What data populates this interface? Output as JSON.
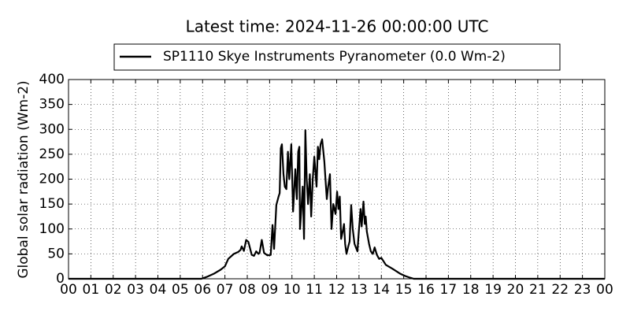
{
  "chart_data": {
    "type": "line",
    "title": "Latest time: 2024-11-26 00:00:00 UTC",
    "y_label": "Global solar radiation (Wm-2)",
    "series": [
      {
        "name": "SP1110 Skye Instruments Pyranometer (0.0 Wm-2)",
        "color": "#000000",
        "x": [
          0,
          5.5,
          5.95,
          6.2,
          6.5,
          6.8,
          7.0,
          7.15,
          7.4,
          7.6,
          7.7,
          7.75,
          7.85,
          7.95,
          8.05,
          8.2,
          8.3,
          8.4,
          8.5,
          8.55,
          8.65,
          8.75,
          8.9,
          9.05,
          9.13,
          9.2,
          9.3,
          9.4,
          9.45,
          9.5,
          9.55,
          9.62,
          9.68,
          9.75,
          9.82,
          9.88,
          9.97,
          10.05,
          10.15,
          10.22,
          10.28,
          10.33,
          10.36,
          10.42,
          10.48,
          10.54,
          10.6,
          10.66,
          10.72,
          10.8,
          10.86,
          10.93,
          11.0,
          11.1,
          11.16,
          11.22,
          11.28,
          11.35,
          11.45,
          11.5,
          11.56,
          11.62,
          11.7,
          11.77,
          11.85,
          11.95,
          12.02,
          12.08,
          12.14,
          12.2,
          12.27,
          12.33,
          12.38,
          12.44,
          12.52,
          12.58,
          12.65,
          12.72,
          12.8,
          12.93,
          13.0,
          13.07,
          13.12,
          13.2,
          13.26,
          13.3,
          13.35,
          13.45,
          13.53,
          13.62,
          13.7,
          13.8,
          13.9,
          14.0,
          14.2,
          14.5,
          14.85,
          15.1,
          15.3,
          15.45,
          16,
          24
        ],
        "values": [
          0,
          0,
          0,
          4,
          10,
          18,
          25,
          40,
          50,
          54,
          58,
          65,
          56,
          78,
          74,
          48,
          46,
          55,
          50,
          52,
          78,
          52,
          47,
          48,
          108,
          60,
          148,
          165,
          172,
          262,
          270,
          210,
          185,
          180,
          255,
          200,
          270,
          135,
          220,
          160,
          255,
          265,
          100,
          140,
          185,
          80,
          298,
          200,
          150,
          210,
          125,
          200,
          245,
          185,
          265,
          240,
          270,
          280,
          235,
          200,
          160,
          185,
          210,
          100,
          150,
          130,
          175,
          140,
          165,
          80,
          95,
          110,
          70,
          50,
          65,
          75,
          148,
          100,
          70,
          55,
          100,
          140,
          105,
          155,
          110,
          125,
          95,
          70,
          55,
          50,
          63,
          48,
          40,
          42,
          28,
          20,
          10,
          5,
          2,
          0,
          0,
          0
        ]
      }
    ],
    "xlim": [
      0,
      24
    ],
    "xticks": [
      {
        "value": 0,
        "label": "00"
      },
      {
        "value": 1,
        "label": "01"
      },
      {
        "value": 2,
        "label": "02"
      },
      {
        "value": 3,
        "label": "03"
      },
      {
        "value": 4,
        "label": "04"
      },
      {
        "value": 5,
        "label": "05"
      },
      {
        "value": 6,
        "label": "06"
      },
      {
        "value": 7,
        "label": "07"
      },
      {
        "value": 8,
        "label": "08"
      },
      {
        "value": 9,
        "label": "09"
      },
      10,
      11,
      12,
      13,
      14,
      15,
      16,
      17,
      18,
      19,
      20,
      21,
      22,
      23,
      {
        "value": 24,
        "label": "00"
      }
    ],
    "ylim": [
      0,
      400
    ],
    "yticks": [
      0,
      50,
      100,
      150,
      200,
      250,
      300,
      350,
      400
    ],
    "grid": true
  }
}
